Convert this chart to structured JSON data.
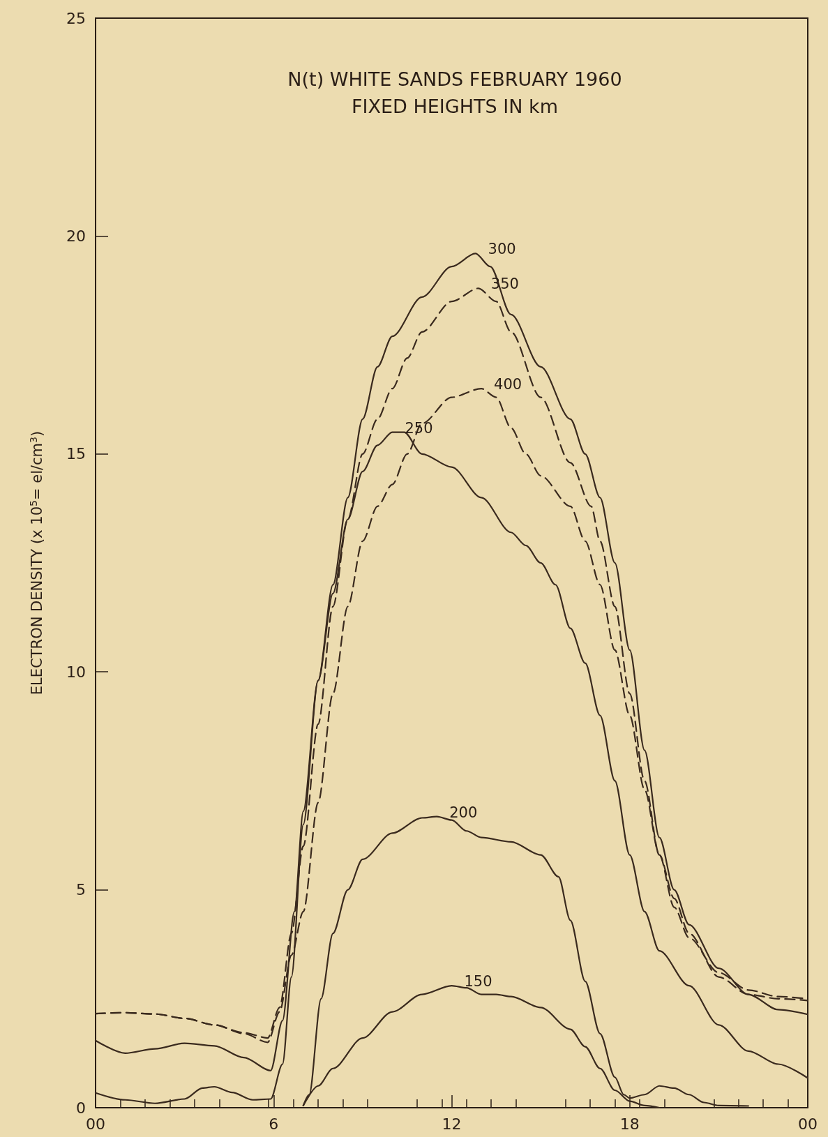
{
  "chart_data": {
    "type": "line",
    "title": "N(t) WHITE SANDS FEBRUARY 1960",
    "subtitle": "FIXED HEIGHTS IN km",
    "ylabel": "ELECTRON DENSITY (x 10$^{5}$= el/cm$^{3}$)",
    "xlim": [
      0,
      24
    ],
    "xticks": [
      {
        "value": 0,
        "label": "00"
      },
      6,
      12,
      18,
      {
        "value": 24,
        "label": "00"
      }
    ],
    "ylim": [
      0,
      25
    ],
    "yticks": [
      0,
      5,
      10,
      15,
      20,
      25
    ],
    "grid": false,
    "legend": false,
    "marker": "none",
    "series": [
      {
        "name": "300",
        "color": "#3a2a1e",
        "line_style": "solid",
        "x": [
          0,
          1,
          2,
          3,
          4,
          5,
          5.9,
          6.3,
          6.7,
          7,
          7.5,
          8,
          8.5,
          9,
          9.5,
          10,
          11,
          12,
          12.8,
          13.3,
          14,
          15,
          16,
          16.5,
          17,
          17.5,
          18,
          18.5,
          19,
          19.5,
          20,
          21,
          22,
          23,
          24
        ],
        "values": [
          1.54,
          1.25,
          1.35,
          1.48,
          1.42,
          1.15,
          0.85,
          2.0,
          4.5,
          6.8,
          9.8,
          12.0,
          14.0,
          15.8,
          17.0,
          17.7,
          18.6,
          19.3,
          19.6,
          19.3,
          18.2,
          17.0,
          15.8,
          15.0,
          14.0,
          12.5,
          10.5,
          8.2,
          6.2,
          5.0,
          4.2,
          3.2,
          2.6,
          2.25,
          2.14
        ]
      },
      {
        "name": "350",
        "color": "#3a2a1e",
        "line_style": "dashed",
        "x": [
          0,
          1,
          2,
          3,
          4,
          5,
          5.8,
          6.2,
          6.6,
          7,
          7.5,
          8,
          8.5,
          9,
          9.5,
          10,
          10.5,
          11,
          12,
          12.9,
          13.5,
          14,
          15,
          16,
          16.7,
          17,
          17.5,
          18,
          18.5,
          19,
          19.5,
          20,
          21,
          22,
          23,
          24
        ],
        "values": [
          2.16,
          2.18,
          2.15,
          2.05,
          1.9,
          1.72,
          1.6,
          2.3,
          4.0,
          6.0,
          8.8,
          11.5,
          13.5,
          15.0,
          15.8,
          16.5,
          17.2,
          17.8,
          18.5,
          18.8,
          18.5,
          17.8,
          16.3,
          14.8,
          13.8,
          13.0,
          11.5,
          9.5,
          7.5,
          5.8,
          4.6,
          3.9,
          3.1,
          2.7,
          2.55,
          2.5
        ]
      },
      {
        "name": "400",
        "color": "#3a2a1e",
        "line_style": "dashed",
        "x": [
          0,
          1,
          2,
          3,
          4,
          5,
          5.8,
          6.2,
          6.6,
          7,
          7.5,
          8,
          8.5,
          9,
          9.5,
          10,
          10.5,
          11,
          12,
          13,
          13.5,
          14,
          14.5,
          15,
          16,
          16.5,
          17,
          17.5,
          18,
          18.5,
          19,
          19.5,
          20,
          21,
          22,
          23,
          24
        ],
        "values": [
          2.16,
          2.18,
          2.15,
          2.05,
          1.9,
          1.7,
          1.5,
          2.2,
          3.5,
          4.5,
          7.0,
          9.5,
          11.5,
          13.0,
          13.8,
          14.3,
          15.0,
          15.7,
          16.3,
          16.5,
          16.3,
          15.6,
          15.0,
          14.5,
          13.8,
          13.0,
          12.0,
          10.5,
          9.0,
          7.3,
          5.8,
          4.8,
          4.0,
          3.0,
          2.6,
          2.5,
          2.46
        ]
      },
      {
        "name": "250",
        "color": "#3a2a1e",
        "line_style": "solid",
        "x": [
          0,
          1,
          2,
          3,
          3.6,
          4,
          4.6,
          5.3,
          5.9,
          6.3,
          6.6,
          7,
          7.5,
          8,
          8.5,
          9,
          9.5,
          10,
          10.4,
          11,
          12,
          13,
          14,
          14.5,
          15,
          15.5,
          16,
          16.5,
          17,
          17.5,
          18,
          18.5,
          19,
          20,
          21,
          22,
          23,
          24
        ],
        "values": [
          0.34,
          0.18,
          0.1,
          0.2,
          0.45,
          0.48,
          0.35,
          0.18,
          0.2,
          1.0,
          3.0,
          6.5,
          9.8,
          11.8,
          13.5,
          14.6,
          15.2,
          15.5,
          15.5,
          15.0,
          14.7,
          14.0,
          13.2,
          12.9,
          12.5,
          12.0,
          11.0,
          10.2,
          9.0,
          7.5,
          5.8,
          4.5,
          3.6,
          2.8,
          1.9,
          1.3,
          1.0,
          0.68
        ]
      },
      {
        "name": "200",
        "color": "#3a2a1e",
        "line_style": "solid",
        "x": [
          7,
          7.2,
          7.6,
          8,
          8.5,
          9,
          10,
          11,
          11.5,
          12,
          12.5,
          13,
          14,
          15,
          15.6,
          16,
          16.5,
          17,
          17.5,
          17.8,
          18,
          18.5,
          19,
          19.5,
          20,
          20.5,
          21,
          22
        ],
        "values": [
          0.05,
          0.3,
          2.5,
          4.0,
          5.0,
          5.7,
          6.3,
          6.65,
          6.68,
          6.6,
          6.35,
          6.2,
          6.1,
          5.8,
          5.3,
          4.3,
          2.9,
          1.7,
          0.7,
          0.3,
          0.22,
          0.3,
          0.5,
          0.45,
          0.3,
          0.12,
          0.05,
          0.04
        ]
      },
      {
        "name": "150",
        "color": "#3a2a1e",
        "line_style": "solid",
        "x": [
          7,
          7.5,
          8,
          9,
          10,
          11,
          12,
          12.5,
          13,
          13.5,
          14,
          15,
          16,
          16.5,
          17,
          17.5,
          18,
          18.5,
          19
        ],
        "values": [
          0.05,
          0.5,
          0.9,
          1.6,
          2.2,
          2.6,
          2.8,
          2.75,
          2.6,
          2.6,
          2.55,
          2.3,
          1.8,
          1.4,
          0.9,
          0.4,
          0.15,
          0.05,
          0.0
        ]
      }
    ]
  }
}
